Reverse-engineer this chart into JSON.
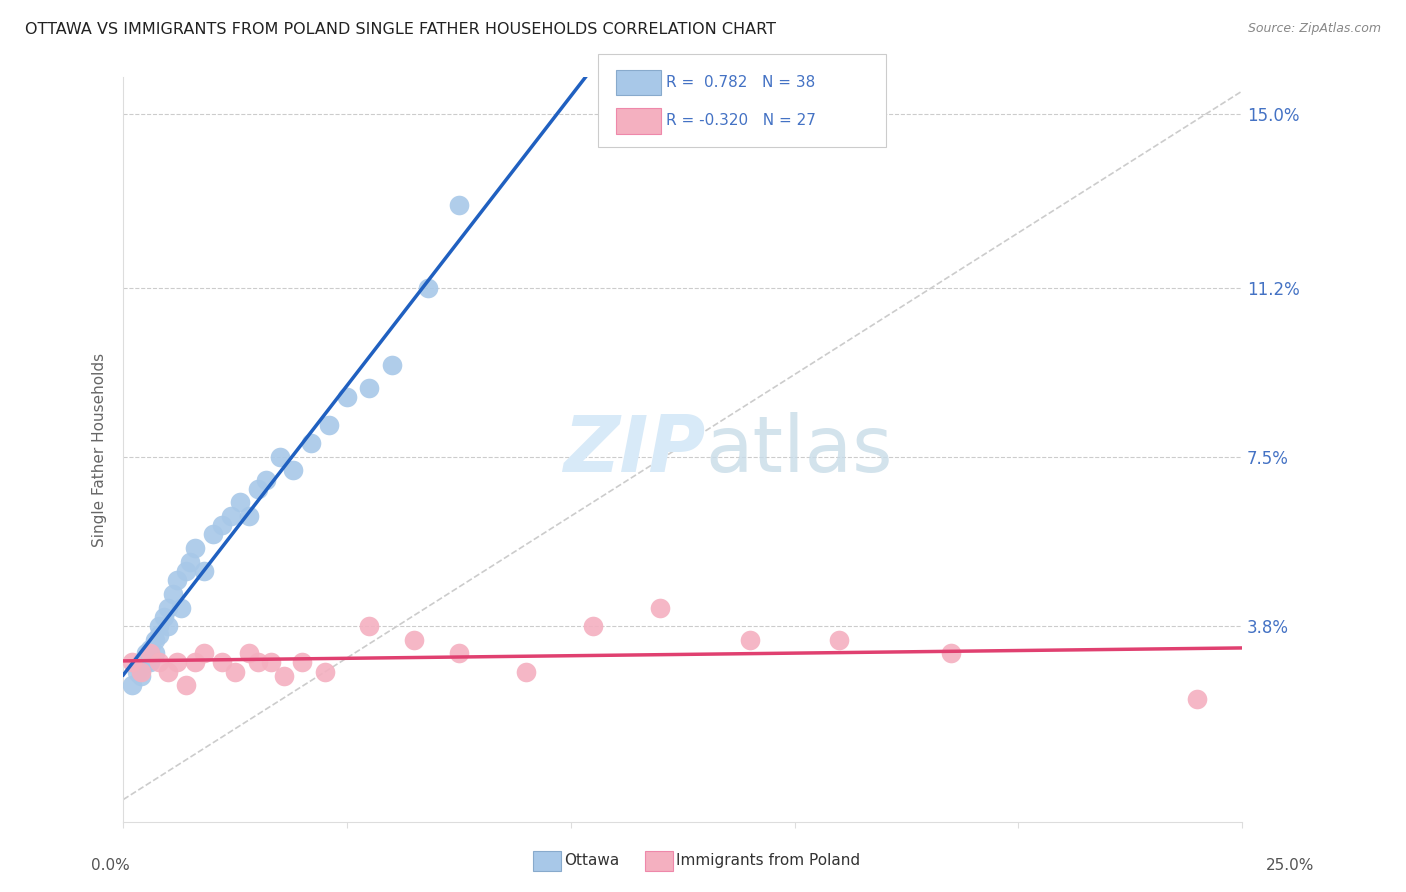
{
  "title": "OTTAWA VS IMMIGRANTS FROM POLAND SINGLE FATHER HOUSEHOLDS CORRELATION CHART",
  "source": "Source: ZipAtlas.com",
  "ylabel": "Single Father Households",
  "xmin": 0.0,
  "xmax": 0.25,
  "ymin": -0.005,
  "ymax": 0.158,
  "yticks": [
    0.038,
    0.075,
    0.112,
    0.15
  ],
  "ytick_labels": [
    "3.8%",
    "7.5%",
    "11.2%",
    "15.0%"
  ],
  "ottawa_R": "0.782",
  "ottawa_N": "38",
  "poland_R": "-0.320",
  "poland_N": "27",
  "ottawa_scatter_color": "#a8c8e8",
  "poland_scatter_color": "#f4b0c0",
  "ottawa_line_color": "#2060c0",
  "poland_line_color": "#e04070",
  "diagonal_color": "#cccccc",
  "bg_color": "#ffffff",
  "grid_color": "#cccccc",
  "legend_label_ottawa": "Ottawa",
  "legend_label_poland": "Immigrants from Poland",
  "watermark_color": "#d8eaf8",
  "ottawa_x": [
    0.002,
    0.003,
    0.004,
    0.004,
    0.005,
    0.005,
    0.006,
    0.006,
    0.007,
    0.007,
    0.008,
    0.008,
    0.009,
    0.01,
    0.01,
    0.011,
    0.012,
    0.013,
    0.014,
    0.015,
    0.016,
    0.018,
    0.02,
    0.022,
    0.024,
    0.026,
    0.028,
    0.03,
    0.032,
    0.035,
    0.038,
    0.042,
    0.046,
    0.05,
    0.055,
    0.06,
    0.068,
    0.075
  ],
  "ottawa_y": [
    0.025,
    0.028,
    0.03,
    0.027,
    0.03,
    0.032,
    0.03,
    0.033,
    0.032,
    0.035,
    0.038,
    0.036,
    0.04,
    0.038,
    0.042,
    0.045,
    0.048,
    0.042,
    0.05,
    0.052,
    0.055,
    0.05,
    0.058,
    0.06,
    0.062,
    0.065,
    0.062,
    0.068,
    0.07,
    0.075,
    0.072,
    0.078,
    0.082,
    0.088,
    0.09,
    0.095,
    0.112,
    0.13
  ],
  "poland_x": [
    0.002,
    0.004,
    0.006,
    0.008,
    0.01,
    0.012,
    0.014,
    0.016,
    0.018,
    0.022,
    0.025,
    0.028,
    0.03,
    0.033,
    0.036,
    0.04,
    0.045,
    0.055,
    0.065,
    0.075,
    0.09,
    0.105,
    0.12,
    0.14,
    0.16,
    0.185,
    0.24
  ],
  "poland_y": [
    0.03,
    0.028,
    0.032,
    0.03,
    0.028,
    0.03,
    0.025,
    0.03,
    0.032,
    0.03,
    0.028,
    0.032,
    0.03,
    0.03,
    0.027,
    0.03,
    0.028,
    0.038,
    0.035,
    0.032,
    0.028,
    0.038,
    0.042,
    0.035,
    0.035,
    0.032,
    0.022
  ]
}
